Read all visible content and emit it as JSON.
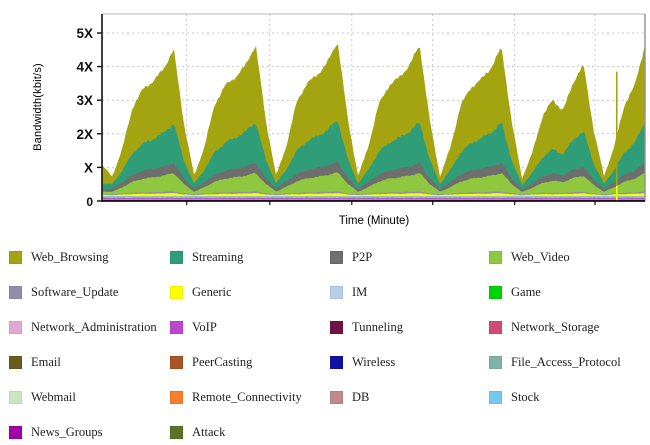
{
  "chart_data": {
    "type": "area",
    "stacked": true,
    "title": "",
    "xlabel": "Time (Minute)",
    "ylabel": "Bandwidth(kbit/s)",
    "ylim": [
      0,
      5.6
    ],
    "x_tick_labels": [],
    "y_ticks": [
      {
        "label": "0",
        "value": 0
      },
      {
        "label": "X",
        "value": 1
      },
      {
        "label": "2X",
        "value": 2
      },
      {
        "label": "3X",
        "value": 3
      },
      {
        "label": "4X",
        "value": 4
      },
      {
        "label": "5X",
        "value": 5
      }
    ],
    "grid": {
      "style": "dotted",
      "horizontal": true,
      "vertical_fracs": [
        0.156,
        0.309,
        0.46,
        0.609,
        0.76,
        0.908
      ]
    },
    "legend": {
      "position": "bottom",
      "columns": 4,
      "items": [
        {
          "label": "Web_Browsing",
          "color": "#A4A411"
        },
        {
          "label": "Streaming",
          "color": "#2F9E78"
        },
        {
          "label": "P2P",
          "color": "#6E6E6E"
        },
        {
          "label": "Web_Video",
          "color": "#8FC73E"
        },
        {
          "label": "Software_Update",
          "color": "#8F8FAD"
        },
        {
          "label": "Generic",
          "color": "#FFFF00"
        },
        {
          "label": "IM",
          "color": "#B7CDE8"
        },
        {
          "label": "Game",
          "color": "#00D300"
        },
        {
          "label": "Network_Administration",
          "color": "#DFA9D4"
        },
        {
          "label": "VoIP",
          "color": "#BE46CF"
        },
        {
          "label": "Tunneling",
          "color": "#6E1345"
        },
        {
          "label": "Network_Storage",
          "color": "#D14B72"
        },
        {
          "label": "Email",
          "color": "#6B5A1E"
        },
        {
          "label": "PeerCasting",
          "color": "#A85423"
        },
        {
          "label": "Wireless",
          "color": "#1111A5"
        },
        {
          "label": "File_Access_Protocol",
          "color": "#7FB3A9"
        },
        {
          "label": "Webmail",
          "color": "#C9E6BF"
        },
        {
          "label": "Remote_Connectivity",
          "color": "#F87E2B"
        },
        {
          "label": "DB",
          "color": "#C08A8A"
        },
        {
          "label": "Stock",
          "color": "#73C9E8"
        },
        {
          "label": "News_Groups",
          "color": "#A000A5"
        },
        {
          "label": "Attack",
          "color": "#5A7327"
        }
      ]
    },
    "n_points": 54,
    "series": [
      {
        "name": "Attack",
        "const": 0.004
      },
      {
        "name": "News_Groups",
        "const": 0.006
      },
      {
        "name": "Tunneling",
        "const": 0.008
      },
      {
        "name": "Wireless",
        "const": 0.004
      },
      {
        "name": "Email",
        "const": 0.006
      },
      {
        "name": "PeerCasting",
        "const": 0.004
      },
      {
        "name": "DB",
        "const": 0.004
      },
      {
        "name": "Network_Storage",
        "const": 0.005
      },
      {
        "name": "Remote_Connectivity",
        "const": 0.004
      },
      {
        "name": "Stock",
        "const": 0.004
      },
      {
        "name": "File_Access_Protocol",
        "const": 0.006
      },
      {
        "name": "Network_Administration",
        "const": 0.008
      },
      {
        "name": "VoIP",
        "const": 0.03
      },
      {
        "name": "Webmail",
        "const": 0.015
      },
      {
        "name": "Game",
        "const": 0.018
      },
      {
        "name": "IM",
        "const": 0.028
      },
      {
        "name": "Generic",
        "values": [
          0.03,
          0.02,
          0.04,
          0.05,
          0.06,
          0.06,
          0.07,
          0.08,
          0.04,
          0.02,
          0.04,
          0.05,
          0.06,
          0.06,
          0.07,
          0.08,
          0.04,
          0.02,
          0.04,
          0.05,
          0.06,
          0.06,
          0.07,
          0.08,
          0.04,
          0.02,
          0.04,
          0.05,
          0.06,
          0.06,
          0.07,
          0.08,
          0.04,
          0.02,
          0.04,
          0.05,
          0.06,
          0.06,
          0.07,
          0.08,
          0.04,
          0.02,
          0.04,
          0.05,
          0.05,
          0.05,
          0.06,
          0.07,
          0.04,
          0.02,
          0.04,
          0.05,
          0.06,
          0.08
        ]
      },
      {
        "name": "Software_Update",
        "values": [
          0.02,
          0.02,
          0.03,
          0.04,
          0.04,
          0.05,
          0.05,
          0.05,
          0.03,
          0.02,
          0.03,
          0.04,
          0.04,
          0.05,
          0.05,
          0.05,
          0.03,
          0.02,
          0.03,
          0.04,
          0.04,
          0.05,
          0.05,
          0.05,
          0.03,
          0.02,
          0.03,
          0.04,
          0.04,
          0.05,
          0.05,
          0.05,
          0.03,
          0.02,
          0.03,
          0.04,
          0.04,
          0.05,
          0.05,
          0.05,
          0.03,
          0.02,
          0.03,
          0.04,
          0.04,
          0.04,
          0.05,
          0.05,
          0.03,
          0.02,
          0.03,
          0.04,
          0.04,
          0.05
        ]
      },
      {
        "name": "Web_Video",
        "values": [
          0.08,
          0.08,
          0.19,
          0.33,
          0.41,
          0.44,
          0.48,
          0.55,
          0.28,
          0.08,
          0.19,
          0.33,
          0.41,
          0.44,
          0.48,
          0.55,
          0.28,
          0.09,
          0.2,
          0.34,
          0.42,
          0.45,
          0.5,
          0.57,
          0.29,
          0.08,
          0.19,
          0.33,
          0.41,
          0.44,
          0.48,
          0.55,
          0.28,
          0.08,
          0.19,
          0.33,
          0.41,
          0.44,
          0.48,
          0.55,
          0.28,
          0.07,
          0.17,
          0.29,
          0.36,
          0.32,
          0.42,
          0.48,
          0.25,
          0.08,
          0.19,
          0.33,
          0.41,
          0.55
        ]
      },
      {
        "name": "P2P",
        "values": [
          0.06,
          0.09,
          0.15,
          0.21,
          0.24,
          0.26,
          0.27,
          0.3,
          0.17,
          0.09,
          0.15,
          0.21,
          0.24,
          0.26,
          0.27,
          0.3,
          0.17,
          0.09,
          0.15,
          0.22,
          0.25,
          0.27,
          0.28,
          0.31,
          0.17,
          0.09,
          0.15,
          0.21,
          0.24,
          0.26,
          0.27,
          0.3,
          0.17,
          0.09,
          0.15,
          0.21,
          0.24,
          0.26,
          0.27,
          0.3,
          0.17,
          0.08,
          0.13,
          0.19,
          0.22,
          0.2,
          0.25,
          0.27,
          0.15,
          0.09,
          0.15,
          0.21,
          0.24,
          0.3
        ]
      },
      {
        "name": "Streaming",
        "values": [
          0.18,
          0.14,
          0.35,
          0.65,
          0.8,
          0.88,
          1.0,
          1.18,
          0.53,
          0.15,
          0.37,
          0.67,
          0.83,
          0.92,
          1.04,
          1.22,
          0.55,
          0.15,
          0.37,
          0.69,
          0.85,
          0.94,
          1.06,
          1.25,
          0.56,
          0.15,
          0.37,
          0.67,
          0.83,
          0.92,
          1.04,
          1.22,
          0.55,
          0.14,
          0.36,
          0.66,
          0.81,
          0.9,
          1.02,
          1.2,
          0.54,
          0.13,
          0.32,
          0.58,
          0.72,
          0.62,
          0.9,
          1.06,
          0.48,
          0.15,
          0.37,
          0.67,
          0.83,
          1.22
        ]
      },
      {
        "name": "Web_Browsing",
        "values": [
          0.55,
          0.22,
          0.66,
          1.37,
          1.63,
          1.72,
          1.9,
          2.21,
          1.1,
          0.23,
          0.69,
          1.42,
          1.7,
          1.79,
          1.97,
          2.3,
          1.15,
          0.23,
          0.7,
          1.45,
          1.73,
          1.82,
          2.01,
          2.34,
          1.17,
          0.23,
          0.69,
          1.42,
          1.7,
          1.79,
          1.97,
          2.3,
          1.15,
          0.22,
          0.67,
          1.4,
          1.66,
          1.75,
          1.93,
          2.25,
          1.12,
          0.2,
          0.59,
          1.23,
          1.47,
          1.3,
          1.7,
          1.98,
          0.99,
          0.23,
          0.69,
          1.42,
          1.7,
          2.3
        ]
      }
    ],
    "artifact_spike": {
      "x_frac": 0.948,
      "segments": [
        {
          "color_of": "Web_Browsing",
          "from": 0,
          "to": 3.85
        },
        {
          "color_of": "Generic",
          "from": 0,
          "to": 0.45
        }
      ]
    }
  }
}
